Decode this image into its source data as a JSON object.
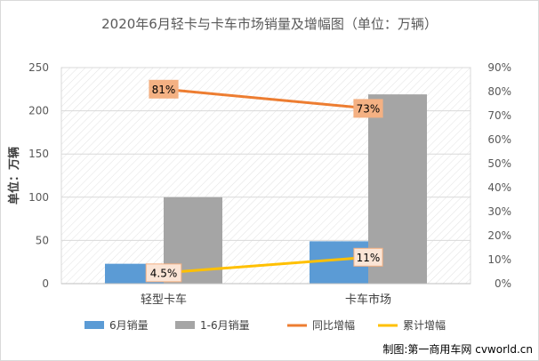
{
  "chart_data": {
    "type": "bar",
    "title": "2020年6月轻卡与卡车市场销量及增幅图（单位：万辆）",
    "ylabel": "单位：万辆",
    "categories": [
      "轻型卡车",
      "卡车市场"
    ],
    "ylim": [
      0,
      250
    ],
    "yticks": [
      "0",
      "50",
      "100",
      "150",
      "200",
      "250"
    ],
    "y2lim": [
      0,
      90
    ],
    "y2ticks": [
      "0%",
      "10%",
      "20%",
      "30%",
      "40%",
      "50%",
      "60%",
      "70%",
      "80%",
      "90%"
    ],
    "series": [
      {
        "name": "6月销量",
        "type": "bar",
        "axis": "left",
        "color": "#5b9bd5",
        "values": [
          23,
          49
        ]
      },
      {
        "name": "1-6月销量",
        "type": "bar",
        "axis": "left",
        "color": "#a5a5a5",
        "values": [
          100,
          219
        ]
      },
      {
        "name": "同比增幅",
        "type": "line",
        "axis": "right",
        "color": "#ed7d31",
        "values": [
          81,
          73
        ],
        "labels": [
          "81%",
          "73%"
        ]
      },
      {
        "name": "累计增幅",
        "type": "line",
        "axis": "right",
        "color": "#ffc000",
        "values": [
          4.5,
          11
        ],
        "labels": [
          "4.5%",
          "11%"
        ]
      }
    ],
    "grid": true,
    "legend": "bottom"
  },
  "credit": "制图:第一商用车网 cvworld.cn"
}
